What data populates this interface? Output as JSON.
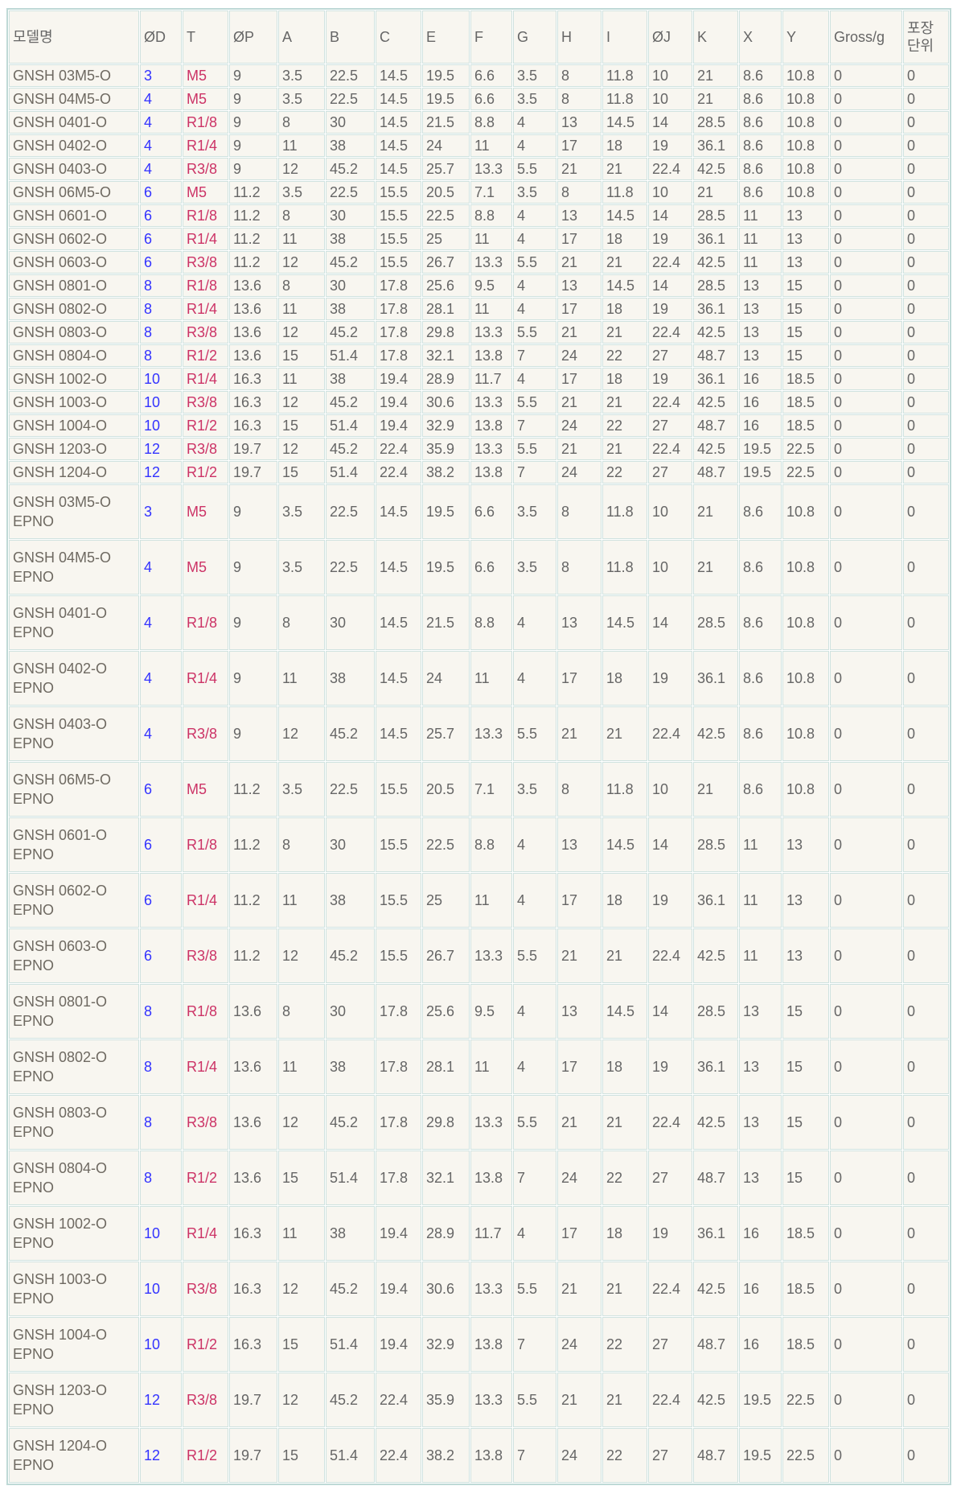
{
  "colors": {
    "page_bg": "#ffffff",
    "cell_bg": "#f8f6f0",
    "grid_border": "#cfe2df",
    "outer_border": "#bed9d6",
    "text": "#666666",
    "model_text": "#6e6961",
    "od_color": "#3333ff",
    "t_color": "#cc3366"
  },
  "table": {
    "columns": [
      {
        "key": "model",
        "label": "모델명"
      },
      {
        "key": "od",
        "label": "ØD"
      },
      {
        "key": "t",
        "label": "T"
      },
      {
        "key": "op",
        "label": "ØP"
      },
      {
        "key": "a",
        "label": "A"
      },
      {
        "key": "b",
        "label": "B"
      },
      {
        "key": "c",
        "label": "C"
      },
      {
        "key": "e",
        "label": "E"
      },
      {
        "key": "f",
        "label": "F"
      },
      {
        "key": "g",
        "label": "G"
      },
      {
        "key": "h",
        "label": "H"
      },
      {
        "key": "i",
        "label": "I"
      },
      {
        "key": "oj",
        "label": "ØJ"
      },
      {
        "key": "k",
        "label": "K"
      },
      {
        "key": "x",
        "label": "X"
      },
      {
        "key": "y",
        "label": "Y"
      },
      {
        "key": "gross",
        "label": "Gross/g"
      },
      {
        "key": "pkg",
        "label": "포장\n단위"
      }
    ],
    "rows": [
      [
        "GNSH 03M5-O",
        "3",
        "M5",
        "9",
        "3.5",
        "22.5",
        "14.5",
        "19.5",
        "6.6",
        "3.5",
        "8",
        "11.8",
        "10",
        "21",
        "8.6",
        "10.8",
        "0",
        "0"
      ],
      [
        "GNSH 04M5-O",
        "4",
        "M5",
        "9",
        "3.5",
        "22.5",
        "14.5",
        "19.5",
        "6.6",
        "3.5",
        "8",
        "11.8",
        "10",
        "21",
        "8.6",
        "10.8",
        "0",
        "0"
      ],
      [
        "GNSH 0401-O",
        "4",
        "R1/8",
        "9",
        "8",
        "30",
        "14.5",
        "21.5",
        "8.8",
        "4",
        "13",
        "14.5",
        "14",
        "28.5",
        "8.6",
        "10.8",
        "0",
        "0"
      ],
      [
        "GNSH 0402-O",
        "4",
        "R1/4",
        "9",
        "11",
        "38",
        "14.5",
        "24",
        "11",
        "4",
        "17",
        "18",
        "19",
        "36.1",
        "8.6",
        "10.8",
        "0",
        "0"
      ],
      [
        "GNSH 0403-O",
        "4",
        "R3/8",
        "9",
        "12",
        "45.2",
        "14.5",
        "25.7",
        "13.3",
        "5.5",
        "21",
        "21",
        "22.4",
        "42.5",
        "8.6",
        "10.8",
        "0",
        "0"
      ],
      [
        "GNSH 06M5-O",
        "6",
        "M5",
        "11.2",
        "3.5",
        "22.5",
        "15.5",
        "20.5",
        "7.1",
        "3.5",
        "8",
        "11.8",
        "10",
        "21",
        "8.6",
        "10.8",
        "0",
        "0"
      ],
      [
        "GNSH 0601-O",
        "6",
        "R1/8",
        "11.2",
        "8",
        "30",
        "15.5",
        "22.5",
        "8.8",
        "4",
        "13",
        "14.5",
        "14",
        "28.5",
        "11",
        "13",
        "0",
        "0"
      ],
      [
        "GNSH 0602-O",
        "6",
        "R1/4",
        "11.2",
        "11",
        "38",
        "15.5",
        "25",
        "11",
        "4",
        "17",
        "18",
        "19",
        "36.1",
        "11",
        "13",
        "0",
        "0"
      ],
      [
        "GNSH 0603-O",
        "6",
        "R3/8",
        "11.2",
        "12",
        "45.2",
        "15.5",
        "26.7",
        "13.3",
        "5.5",
        "21",
        "21",
        "22.4",
        "42.5",
        "11",
        "13",
        "0",
        "0"
      ],
      [
        "GNSH 0801-O",
        "8",
        "R1/8",
        "13.6",
        "8",
        "30",
        "17.8",
        "25.6",
        "9.5",
        "4",
        "13",
        "14.5",
        "14",
        "28.5",
        "13",
        "15",
        "0",
        "0"
      ],
      [
        "GNSH 0802-O",
        "8",
        "R1/4",
        "13.6",
        "11",
        "38",
        "17.8",
        "28.1",
        "11",
        "4",
        "17",
        "18",
        "19",
        "36.1",
        "13",
        "15",
        "0",
        "0"
      ],
      [
        "GNSH 0803-O",
        "8",
        "R3/8",
        "13.6",
        "12",
        "45.2",
        "17.8",
        "29.8",
        "13.3",
        "5.5",
        "21",
        "21",
        "22.4",
        "42.5",
        "13",
        "15",
        "0",
        "0"
      ],
      [
        "GNSH 0804-O",
        "8",
        "R1/2",
        "13.6",
        "15",
        "51.4",
        "17.8",
        "32.1",
        "13.8",
        "7",
        "24",
        "22",
        "27",
        "48.7",
        "13",
        "15",
        "0",
        "0"
      ],
      [
        "GNSH 1002-O",
        "10",
        "R1/4",
        "16.3",
        "11",
        "38",
        "19.4",
        "28.9",
        "11.7",
        "4",
        "17",
        "18",
        "19",
        "36.1",
        "16",
        "18.5",
        "0",
        "0"
      ],
      [
        "GNSH 1003-O",
        "10",
        "R3/8",
        "16.3",
        "12",
        "45.2",
        "19.4",
        "30.6",
        "13.3",
        "5.5",
        "21",
        "21",
        "22.4",
        "42.5",
        "16",
        "18.5",
        "0",
        "0"
      ],
      [
        "GNSH 1004-O",
        "10",
        "R1/2",
        "16.3",
        "15",
        "51.4",
        "19.4",
        "32.9",
        "13.8",
        "7",
        "24",
        "22",
        "27",
        "48.7",
        "16",
        "18.5",
        "0",
        "0"
      ],
      [
        "GNSH 1203-O",
        "12",
        "R3/8",
        "19.7",
        "12",
        "45.2",
        "22.4",
        "35.9",
        "13.3",
        "5.5",
        "21",
        "21",
        "22.4",
        "42.5",
        "19.5",
        "22.5",
        "0",
        "0"
      ],
      [
        "GNSH 1204-O",
        "12",
        "R1/2",
        "19.7",
        "15",
        "51.4",
        "22.4",
        "38.2",
        "13.8",
        "7",
        "24",
        "22",
        "27",
        "48.7",
        "19.5",
        "22.5",
        "0",
        "0"
      ],
      [
        "GNSH 03M5-O\nEPNO",
        "3",
        "M5",
        "9",
        "3.5",
        "22.5",
        "14.5",
        "19.5",
        "6.6",
        "3.5",
        "8",
        "11.8",
        "10",
        "21",
        "8.6",
        "10.8",
        "0",
        "0"
      ],
      [
        "GNSH 04M5-O\nEPNO",
        "4",
        "M5",
        "9",
        "3.5",
        "22.5",
        "14.5",
        "19.5",
        "6.6",
        "3.5",
        "8",
        "11.8",
        "10",
        "21",
        "8.6",
        "10.8",
        "0",
        "0"
      ],
      [
        "GNSH 0401-O\nEPNO",
        "4",
        "R1/8",
        "9",
        "8",
        "30",
        "14.5",
        "21.5",
        "8.8",
        "4",
        "13",
        "14.5",
        "14",
        "28.5",
        "8.6",
        "10.8",
        "0",
        "0"
      ],
      [
        "GNSH 0402-O\nEPNO",
        "4",
        "R1/4",
        "9",
        "11",
        "38",
        "14.5",
        "24",
        "11",
        "4",
        "17",
        "18",
        "19",
        "36.1",
        "8.6",
        "10.8",
        "0",
        "0"
      ],
      [
        "GNSH 0403-O\nEPNO",
        "4",
        "R3/8",
        "9",
        "12",
        "45.2",
        "14.5",
        "25.7",
        "13.3",
        "5.5",
        "21",
        "21",
        "22.4",
        "42.5",
        "8.6",
        "10.8",
        "0",
        "0"
      ],
      [
        "GNSH 06M5-O\nEPNO",
        "6",
        "M5",
        "11.2",
        "3.5",
        "22.5",
        "15.5",
        "20.5",
        "7.1",
        "3.5",
        "8",
        "11.8",
        "10",
        "21",
        "8.6",
        "10.8",
        "0",
        "0"
      ],
      [
        "GNSH 0601-O\nEPNO",
        "6",
        "R1/8",
        "11.2",
        "8",
        "30",
        "15.5",
        "22.5",
        "8.8",
        "4",
        "13",
        "14.5",
        "14",
        "28.5",
        "11",
        "13",
        "0",
        "0"
      ],
      [
        "GNSH 0602-O\nEPNO",
        "6",
        "R1/4",
        "11.2",
        "11",
        "38",
        "15.5",
        "25",
        "11",
        "4",
        "17",
        "18",
        "19",
        "36.1",
        "11",
        "13",
        "0",
        "0"
      ],
      [
        "GNSH 0603-O\nEPNO",
        "6",
        "R3/8",
        "11.2",
        "12",
        "45.2",
        "15.5",
        "26.7",
        "13.3",
        "5.5",
        "21",
        "21",
        "22.4",
        "42.5",
        "11",
        "13",
        "0",
        "0"
      ],
      [
        "GNSH 0801-O\nEPNO",
        "8",
        "R1/8",
        "13.6",
        "8",
        "30",
        "17.8",
        "25.6",
        "9.5",
        "4",
        "13",
        "14.5",
        "14",
        "28.5",
        "13",
        "15",
        "0",
        "0"
      ],
      [
        "GNSH 0802-O\nEPNO",
        "8",
        "R1/4",
        "13.6",
        "11",
        "38",
        "17.8",
        "28.1",
        "11",
        "4",
        "17",
        "18",
        "19",
        "36.1",
        "13",
        "15",
        "0",
        "0"
      ],
      [
        "GNSH 0803-O\nEPNO",
        "8",
        "R3/8",
        "13.6",
        "12",
        "45.2",
        "17.8",
        "29.8",
        "13.3",
        "5.5",
        "21",
        "21",
        "22.4",
        "42.5",
        "13",
        "15",
        "0",
        "0"
      ],
      [
        "GNSH 0804-O\nEPNO",
        "8",
        "R1/2",
        "13.6",
        "15",
        "51.4",
        "17.8",
        "32.1",
        "13.8",
        "7",
        "24",
        "22",
        "27",
        "48.7",
        "13",
        "15",
        "0",
        "0"
      ],
      [
        "GNSH 1002-O\nEPNO",
        "10",
        "R1/4",
        "16.3",
        "11",
        "38",
        "19.4",
        "28.9",
        "11.7",
        "4",
        "17",
        "18",
        "19",
        "36.1",
        "16",
        "18.5",
        "0",
        "0"
      ],
      [
        "GNSH 1003-O\nEPNO",
        "10",
        "R3/8",
        "16.3",
        "12",
        "45.2",
        "19.4",
        "30.6",
        "13.3",
        "5.5",
        "21",
        "21",
        "22.4",
        "42.5",
        "16",
        "18.5",
        "0",
        "0"
      ],
      [
        "GNSH 1004-O\nEPNO",
        "10",
        "R1/2",
        "16.3",
        "15",
        "51.4",
        "19.4",
        "32.9",
        "13.8",
        "7",
        "24",
        "22",
        "27",
        "48.7",
        "16",
        "18.5",
        "0",
        "0"
      ],
      [
        "GNSH 1203-O\nEPNO",
        "12",
        "R3/8",
        "19.7",
        "12",
        "45.2",
        "22.4",
        "35.9",
        "13.3",
        "5.5",
        "21",
        "21",
        "22.4",
        "42.5",
        "19.5",
        "22.5",
        "0",
        "0"
      ],
      [
        "GNSH 1204-O\nEPNO",
        "12",
        "R1/2",
        "19.7",
        "15",
        "51.4",
        "22.4",
        "38.2",
        "13.8",
        "7",
        "24",
        "22",
        "27",
        "48.7",
        "19.5",
        "22.5",
        "0",
        "0"
      ]
    ]
  }
}
